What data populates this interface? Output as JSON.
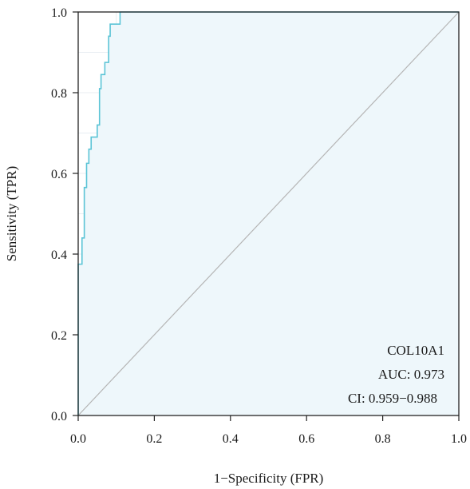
{
  "chart_data": {
    "type": "line",
    "subtype": "roc",
    "title": "",
    "xlabel": "1−Specificity (FPR)",
    "ylabel": "Sensitivity (TPR)",
    "xlim": [
      0.0,
      1.0
    ],
    "ylim": [
      0.0,
      1.0
    ],
    "x_ticks": [
      0.0,
      0.2,
      0.4,
      0.6,
      0.8,
      1.0
    ],
    "y_ticks": [
      0.0,
      0.2,
      0.4,
      0.6,
      0.8,
      1.0
    ],
    "x_tick_labels": [
      "0.0",
      "0.2",
      "0.4",
      "0.6",
      "0.8",
      "1.0"
    ],
    "y_tick_labels": [
      "0.0",
      "0.2",
      "0.4",
      "0.6",
      "0.8",
      "1.0"
    ],
    "grid": true,
    "series": [
      {
        "name": "COL10A1",
        "color": "#5bc4d6",
        "fill": "#eef7fb",
        "x": [
          0.0,
          0.0,
          0.003,
          0.003,
          0.006,
          0.006,
          0.01,
          0.01,
          0.016,
          0.016,
          0.022,
          0.022,
          0.028,
          0.028,
          0.034,
          0.034,
          0.05,
          0.05,
          0.056,
          0.056,
          0.06,
          0.06,
          0.07,
          0.07,
          0.08,
          0.08,
          0.084,
          0.084,
          0.11,
          0.11,
          1.0
        ],
        "y": [
          0.0,
          0.375,
          0.375,
          0.375,
          0.375,
          0.375,
          0.375,
          0.44,
          0.44,
          0.565,
          0.565,
          0.625,
          0.625,
          0.66,
          0.66,
          0.69,
          0.69,
          0.72,
          0.72,
          0.81,
          0.81,
          0.845,
          0.845,
          0.875,
          0.875,
          0.94,
          0.94,
          0.97,
          0.97,
          1.0,
          1.0
        ]
      }
    ],
    "reference_line": {
      "from": [
        0,
        0
      ],
      "to": [
        1,
        1
      ],
      "color": "#b5b5b5"
    },
    "annotation": {
      "label": "COL10A1",
      "auc": "AUC: 0.973",
      "ci": "CI: 0.959−0.988"
    },
    "legend": "bottom-right"
  },
  "colors": {
    "background": "#ffffff",
    "panel": "#ffffff",
    "grid": "#e8eef2",
    "frame": "#222222"
  }
}
